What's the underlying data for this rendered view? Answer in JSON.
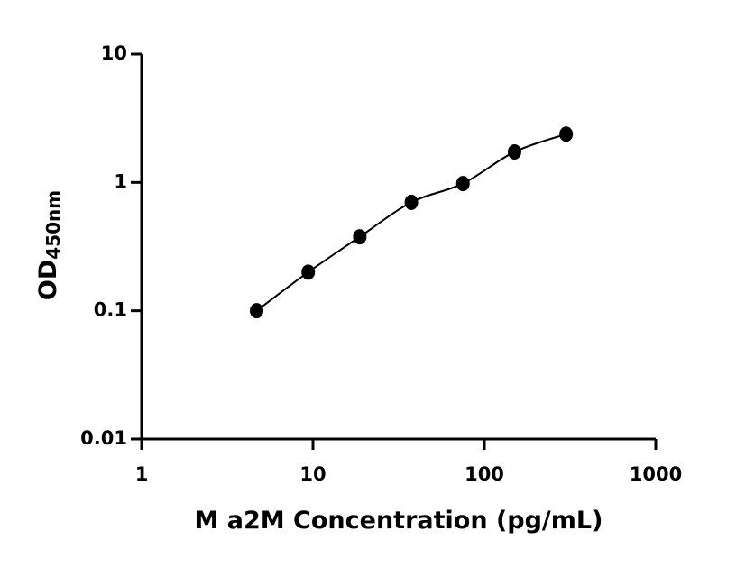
{
  "chart_data": {
    "type": "scatter",
    "xlabel": "M a2M Concentration (pg/mL)",
    "ylabel": "OD",
    "ylabel_subscript": "450nm",
    "x": [
      4.69,
      9.38,
      18.75,
      37.5,
      75,
      150,
      300
    ],
    "series": [
      {
        "color": "#000000",
        "values": [
          0.1,
          0.2,
          0.377,
          0.7,
          0.98,
          1.73,
          2.38
        ]
      }
    ],
    "xscale": "log",
    "yscale": "log",
    "xlim": [
      1,
      1000
    ],
    "ylim": [
      0.01,
      10
    ],
    "xticks": [
      1,
      10,
      100,
      1000
    ],
    "yticks": [
      0.01,
      0.1,
      1,
      10
    ]
  }
}
